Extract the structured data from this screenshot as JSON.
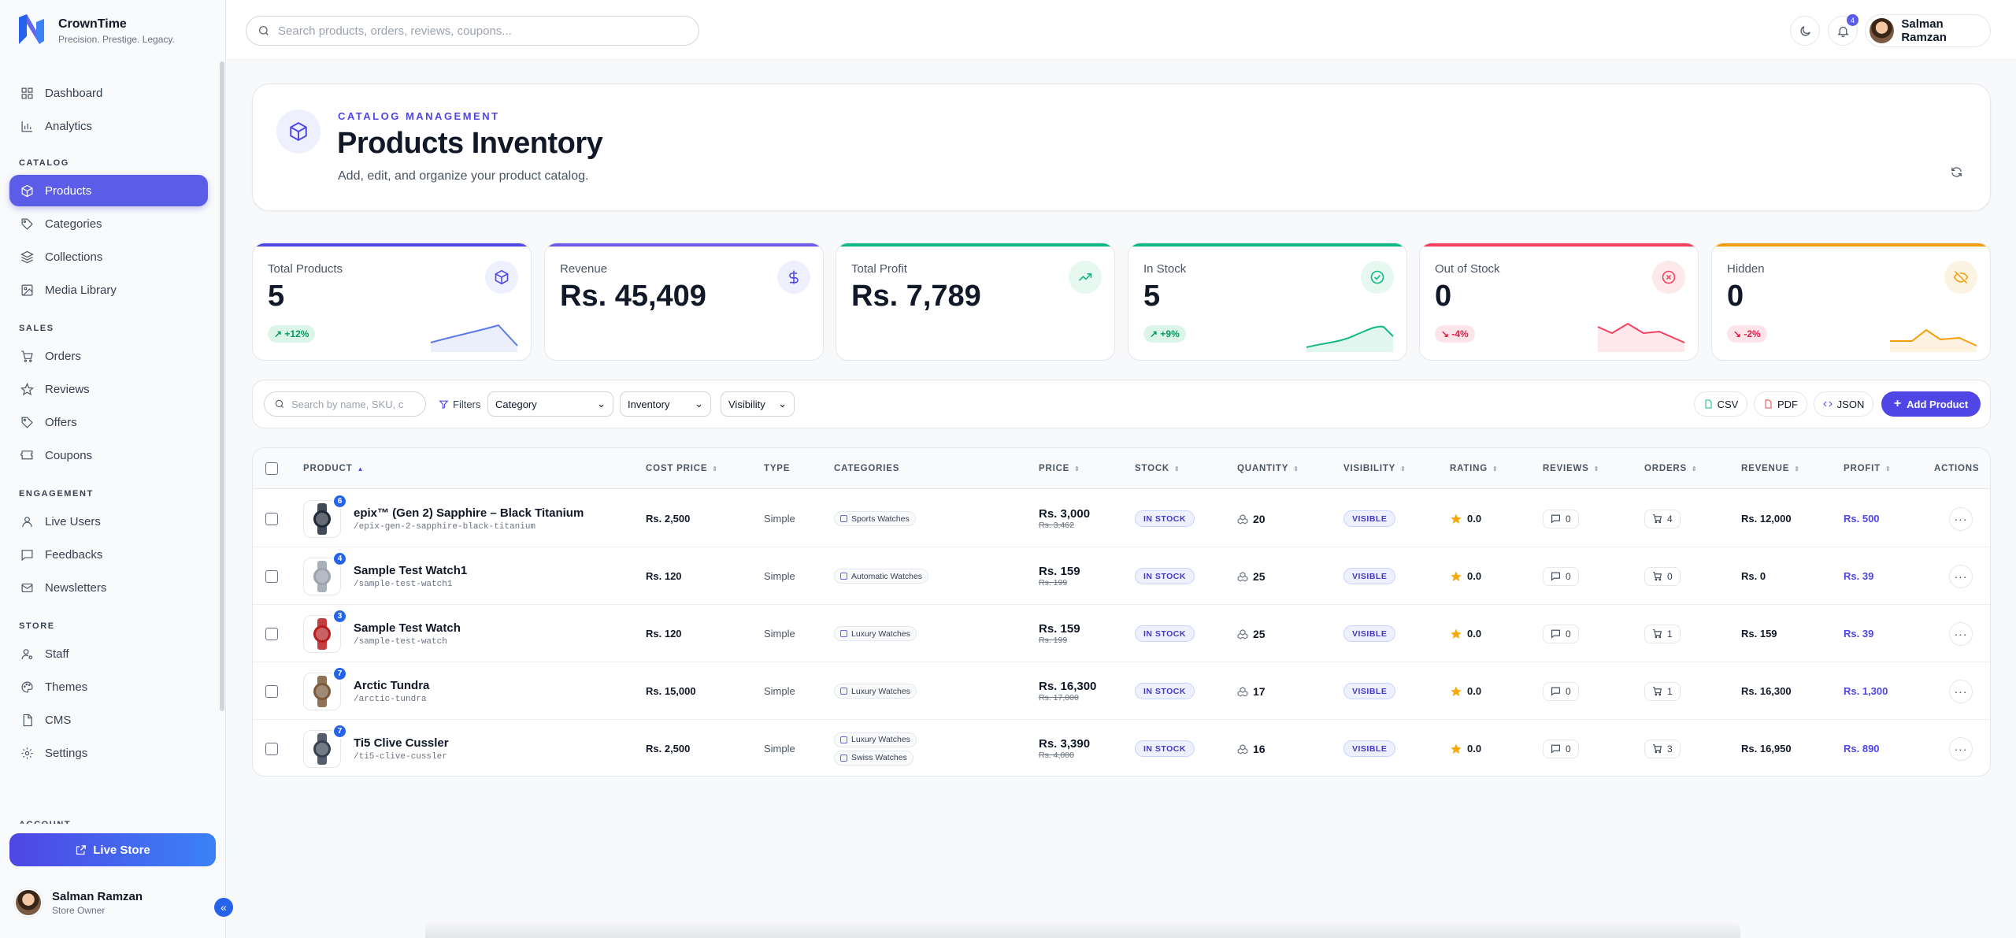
{
  "brand": {
    "name": "CrownTime",
    "tagline": "Precision. Prestige. Legacy."
  },
  "sidebar": {
    "sections": [
      {
        "title": "",
        "items": [
          {
            "label": "Dashboard",
            "icon": "dashboard-icon"
          },
          {
            "label": "Analytics",
            "icon": "analytics-icon"
          }
        ]
      },
      {
        "title": "CATALOG",
        "items": [
          {
            "label": "Products",
            "icon": "box-icon",
            "active": true
          },
          {
            "label": "Categories",
            "icon": "tag-icon"
          },
          {
            "label": "Collections",
            "icon": "layers-icon"
          },
          {
            "label": "Media Library",
            "icon": "image-icon"
          }
        ]
      },
      {
        "title": "SALES",
        "items": [
          {
            "label": "Orders",
            "icon": "cart-icon"
          },
          {
            "label": "Reviews",
            "icon": "star-icon"
          },
          {
            "label": "Offers",
            "icon": "tag-icon"
          },
          {
            "label": "Coupons",
            "icon": "ticket-icon"
          }
        ]
      },
      {
        "title": "ENGAGEMENT",
        "items": [
          {
            "label": "Live Users",
            "icon": "user-icon"
          },
          {
            "label": "Feedbacks",
            "icon": "message-icon"
          },
          {
            "label": "Newsletters",
            "icon": "mail-icon"
          }
        ]
      },
      {
        "title": "STORE",
        "items": [
          {
            "label": "Staff",
            "icon": "user-cog-icon"
          },
          {
            "label": "Themes",
            "icon": "palette-icon"
          },
          {
            "label": "CMS",
            "icon": "file-icon"
          },
          {
            "label": "Settings",
            "icon": "gear-icon"
          }
        ]
      }
    ],
    "account_section": "ACCOUNT",
    "live_store_label": "Live Store",
    "profile": {
      "name": "Salman Ramzan",
      "role": "Store Owner"
    }
  },
  "topbar": {
    "search_placeholder": "Search products, orders, reviews, coupons...",
    "notification_count": "4",
    "user_name": "Salman Ramzan"
  },
  "hero": {
    "kicker": "CATALOG MANAGEMENT",
    "title": "Products Inventory",
    "subtitle": "Add, edit, and organize your product catalog."
  },
  "stats": [
    {
      "label": "Total Products",
      "value": "5",
      "trend": "+12%",
      "trend_dir": "up",
      "accent": "#4f46e5",
      "icon": "box-icon"
    },
    {
      "label": "Revenue",
      "value": "Rs. 45,409",
      "trend": "",
      "accent": "#6d5ce8",
      "icon": "dollar-icon"
    },
    {
      "label": "Total Profit",
      "value": "Rs. 7,789",
      "trend": "",
      "accent": "#10b981",
      "icon": "trending-up-icon"
    },
    {
      "label": "In Stock",
      "value": "5",
      "trend": "+9%",
      "trend_dir": "up",
      "accent": "#10b981",
      "icon": "check-circle-icon"
    },
    {
      "label": "Out of Stock",
      "value": "0",
      "trend": "-4%",
      "trend_dir": "down",
      "accent": "#f43f5e",
      "icon": "x-circle-icon"
    },
    {
      "label": "Hidden",
      "value": "0",
      "trend": "-2%",
      "trend_dir": "down",
      "accent": "#f59e0b",
      "icon": "eye-off-icon"
    }
  ],
  "toolbar": {
    "search_placeholder": "Search by name, SKU, c",
    "filters_label": "Filters",
    "category_select": "Category",
    "inventory_select": "Inventory",
    "visibility_select": "Visibility",
    "csv_label": "CSV",
    "pdf_label": "PDF",
    "json_label": "JSON",
    "add_label": "Add Product"
  },
  "table": {
    "columns": [
      "PRODUCT",
      "COST PRICE",
      "TYPE",
      "CATEGORIES",
      "PRICE",
      "STOCK",
      "QUANTITY",
      "VISIBILITY",
      "RATING",
      "REVIEWS",
      "ORDERS",
      "REVENUE",
      "PROFIT",
      "ACTIONS"
    ],
    "rows": [
      {
        "name": "epix™ (Gen 2) Sapphire – Black Titanium",
        "slug": "/epix-gen-2-sapphire-black-titanium",
        "images": "6",
        "cost": "Rs. 2,500",
        "type": "Simple",
        "categories": [
          "Sports Watches"
        ],
        "price": "Rs. 3,000",
        "old_price": "Rs. 3,462",
        "stock": "IN STOCK",
        "qty": "20",
        "visibility": "VISIBLE",
        "rating": "0.0",
        "reviews": "0",
        "orders": "4",
        "revenue": "Rs. 12,000",
        "profit": "Rs. 500"
      },
      {
        "name": "Sample Test Watch1",
        "slug": "/sample-test-watch1",
        "images": "4",
        "cost": "Rs. 120",
        "type": "Simple",
        "categories": [
          "Automatic Watches"
        ],
        "price": "Rs. 159",
        "old_price": "Rs. 199",
        "stock": "IN STOCK",
        "qty": "25",
        "visibility": "VISIBLE",
        "rating": "0.0",
        "reviews": "0",
        "orders": "0",
        "revenue": "Rs. 0",
        "profit": "Rs. 39"
      },
      {
        "name": "Sample Test Watch",
        "slug": "/sample-test-watch",
        "images": "3",
        "cost": "Rs. 120",
        "type": "Simple",
        "categories": [
          "Luxury Watches"
        ],
        "price": "Rs. 159",
        "old_price": "Rs. 199",
        "stock": "IN STOCK",
        "qty": "25",
        "visibility": "VISIBLE",
        "rating": "0.0",
        "reviews": "0",
        "orders": "1",
        "revenue": "Rs. 159",
        "profit": "Rs. 39"
      },
      {
        "name": "Arctic Tundra",
        "slug": "/arctic-tundra",
        "images": "7",
        "cost": "Rs. 15,000",
        "type": "Simple",
        "categories": [
          "Luxury Watches"
        ],
        "price": "Rs. 16,300",
        "old_price": "Rs. 17,000",
        "stock": "IN STOCK",
        "qty": "17",
        "visibility": "VISIBLE",
        "rating": "0.0",
        "reviews": "0",
        "orders": "1",
        "revenue": "Rs. 16,300",
        "profit": "Rs. 1,300"
      },
      {
        "name": "Ti5 Clive Cussler",
        "slug": "/ti5-clive-cussler",
        "images": "7",
        "cost": "Rs. 2,500",
        "type": "Simple",
        "categories": [
          "Luxury Watches",
          "Swiss Watches"
        ],
        "price": "Rs. 3,390",
        "old_price": "Rs. 4,000",
        "stock": "IN STOCK",
        "qty": "16",
        "visibility": "VISIBLE",
        "rating": "0.0",
        "reviews": "0",
        "orders": "3",
        "revenue": "Rs. 16,950",
        "profit": "Rs. 890"
      }
    ]
  }
}
